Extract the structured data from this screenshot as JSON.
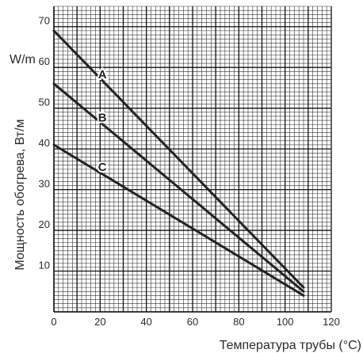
{
  "chart_data": {
    "type": "line",
    "title": "",
    "xlabel": "Температура трубы (°C)",
    "ylabel": "Мощность обогрева, Вт/м",
    "yunit": "W/m",
    "xlim": [
      0,
      120
    ],
    "ylim": [
      0,
      75
    ],
    "xticks": [
      "0",
      "20",
      "40",
      "60",
      "80",
      "100",
      "120"
    ],
    "yticks": [
      "10",
      "20",
      "30",
      "40",
      "50",
      "60",
      "70"
    ],
    "grid": true,
    "line_color": "#222222",
    "grid_color": "#333333",
    "series": [
      {
        "name": "A",
        "x": [
          0,
          108
        ],
        "y": [
          69,
          6
        ]
      },
      {
        "name": "B",
        "x": [
          0,
          108
        ],
        "y": [
          56,
          5
        ]
      },
      {
        "name": "C",
        "x": [
          0,
          108
        ],
        "y": [
          41,
          4
        ]
      }
    ]
  }
}
